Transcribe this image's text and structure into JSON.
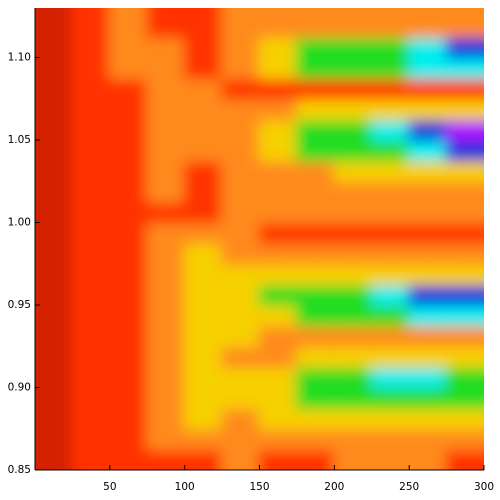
{
  "chart_data": {
    "type": "heatmap",
    "x": [
      12.5,
      37.5,
      62.5,
      87.5,
      112.5,
      137.5,
      162.5,
      187.5,
      212.5,
      237.5,
      262.5,
      287.5
    ],
    "y": [
      0.85625,
      0.86875,
      0.88125,
      0.89375,
      0.90625,
      0.91875,
      0.93125,
      0.94375,
      0.95625,
      0.96875,
      0.98125,
      0.99375,
      1.00625,
      1.01875,
      1.03125,
      1.04375,
      1.05625,
      1.06875,
      1.08125,
      1.09375,
      1.10625,
      1.11875
    ],
    "z": [
      [
        0,
        1,
        1,
        1,
        1,
        2,
        1,
        1,
        2,
        2,
        2,
        1
      ],
      [
        0,
        1,
        1,
        2,
        2,
        2,
        2,
        2,
        2,
        2,
        2,
        2
      ],
      [
        0,
        1,
        1,
        2,
        3,
        2,
        3,
        3,
        3,
        3,
        3,
        3
      ],
      [
        0,
        1,
        1,
        2,
        3,
        3,
        3,
        4,
        4,
        4,
        4,
        4
      ],
      [
        0,
        1,
        1,
        2,
        3,
        3,
        3,
        4,
        4,
        5,
        5,
        4
      ],
      [
        0,
        1,
        1,
        2,
        3,
        2,
        2,
        3,
        3,
        3,
        3,
        3
      ],
      [
        0,
        1,
        1,
        2,
        3,
        3,
        2,
        2,
        2,
        2,
        2,
        2
      ],
      [
        0,
        1,
        1,
        2,
        3,
        3,
        3,
        4,
        4,
        4,
        5,
        5
      ],
      [
        0,
        1,
        1,
        2,
        3,
        3,
        4,
        4,
        4,
        5,
        6,
        6
      ],
      [
        0,
        1,
        1,
        2,
        3,
        3,
        3,
        3,
        3,
        3,
        3,
        3
      ],
      [
        0,
        1,
        1,
        2,
        3,
        2,
        2,
        2,
        2,
        2,
        2,
        2
      ],
      [
        0,
        1,
        1,
        2,
        2,
        2,
        1,
        1,
        1,
        1,
        1,
        1
      ],
      [
        0,
        1,
        1,
        1,
        1,
        2,
        2,
        2,
        2,
        2,
        2,
        2
      ],
      [
        0,
        1,
        1,
        2,
        1,
        2,
        2,
        2,
        2,
        2,
        2,
        2
      ],
      [
        0,
        1,
        1,
        2,
        1,
        2,
        2,
        2,
        3,
        3,
        3,
        3
      ],
      [
        0,
        1,
        1,
        2,
        2,
        2,
        3,
        4,
        4,
        4,
        5,
        6
      ],
      [
        0,
        1,
        1,
        2,
        2,
        2,
        3,
        4,
        4,
        5,
        6,
        7
      ],
      [
        0,
        1,
        1,
        2,
        2,
        2,
        2,
        3,
        3,
        3,
        3,
        3
      ],
      [
        0,
        1,
        1,
        2,
        2,
        1,
        1,
        1,
        1,
        1,
        1,
        1
      ],
      [
        0,
        1,
        2,
        2,
        1,
        2,
        3,
        4,
        4,
        4,
        5,
        5
      ],
      [
        0,
        1,
        2,
        2,
        1,
        2,
        3,
        4,
        4,
        4,
        5,
        6
      ],
      [
        0,
        1,
        2,
        1,
        1,
        2,
        2,
        2,
        2,
        2,
        2,
        2
      ]
    ],
    "colors": [
      "#d42000",
      "#ff3300",
      "#ff8a1a",
      "#f7d000",
      "#22dd22",
      "#00eeee",
      "#0030dd",
      "#aa00ff"
    ],
    "xlim": [
      0,
      300
    ],
    "xticks": [
      50,
      100,
      150,
      200,
      250,
      300
    ],
    "ylim": [
      0.85,
      1.13
    ],
    "yticks": [
      0.85,
      {
        "value": 0.9,
        "label": "0.90"
      },
      0.95,
      {
        "value": 1,
        "label": "1.00"
      },
      1.05,
      {
        "value": 1.1,
        "label": "1.10"
      }
    ]
  }
}
